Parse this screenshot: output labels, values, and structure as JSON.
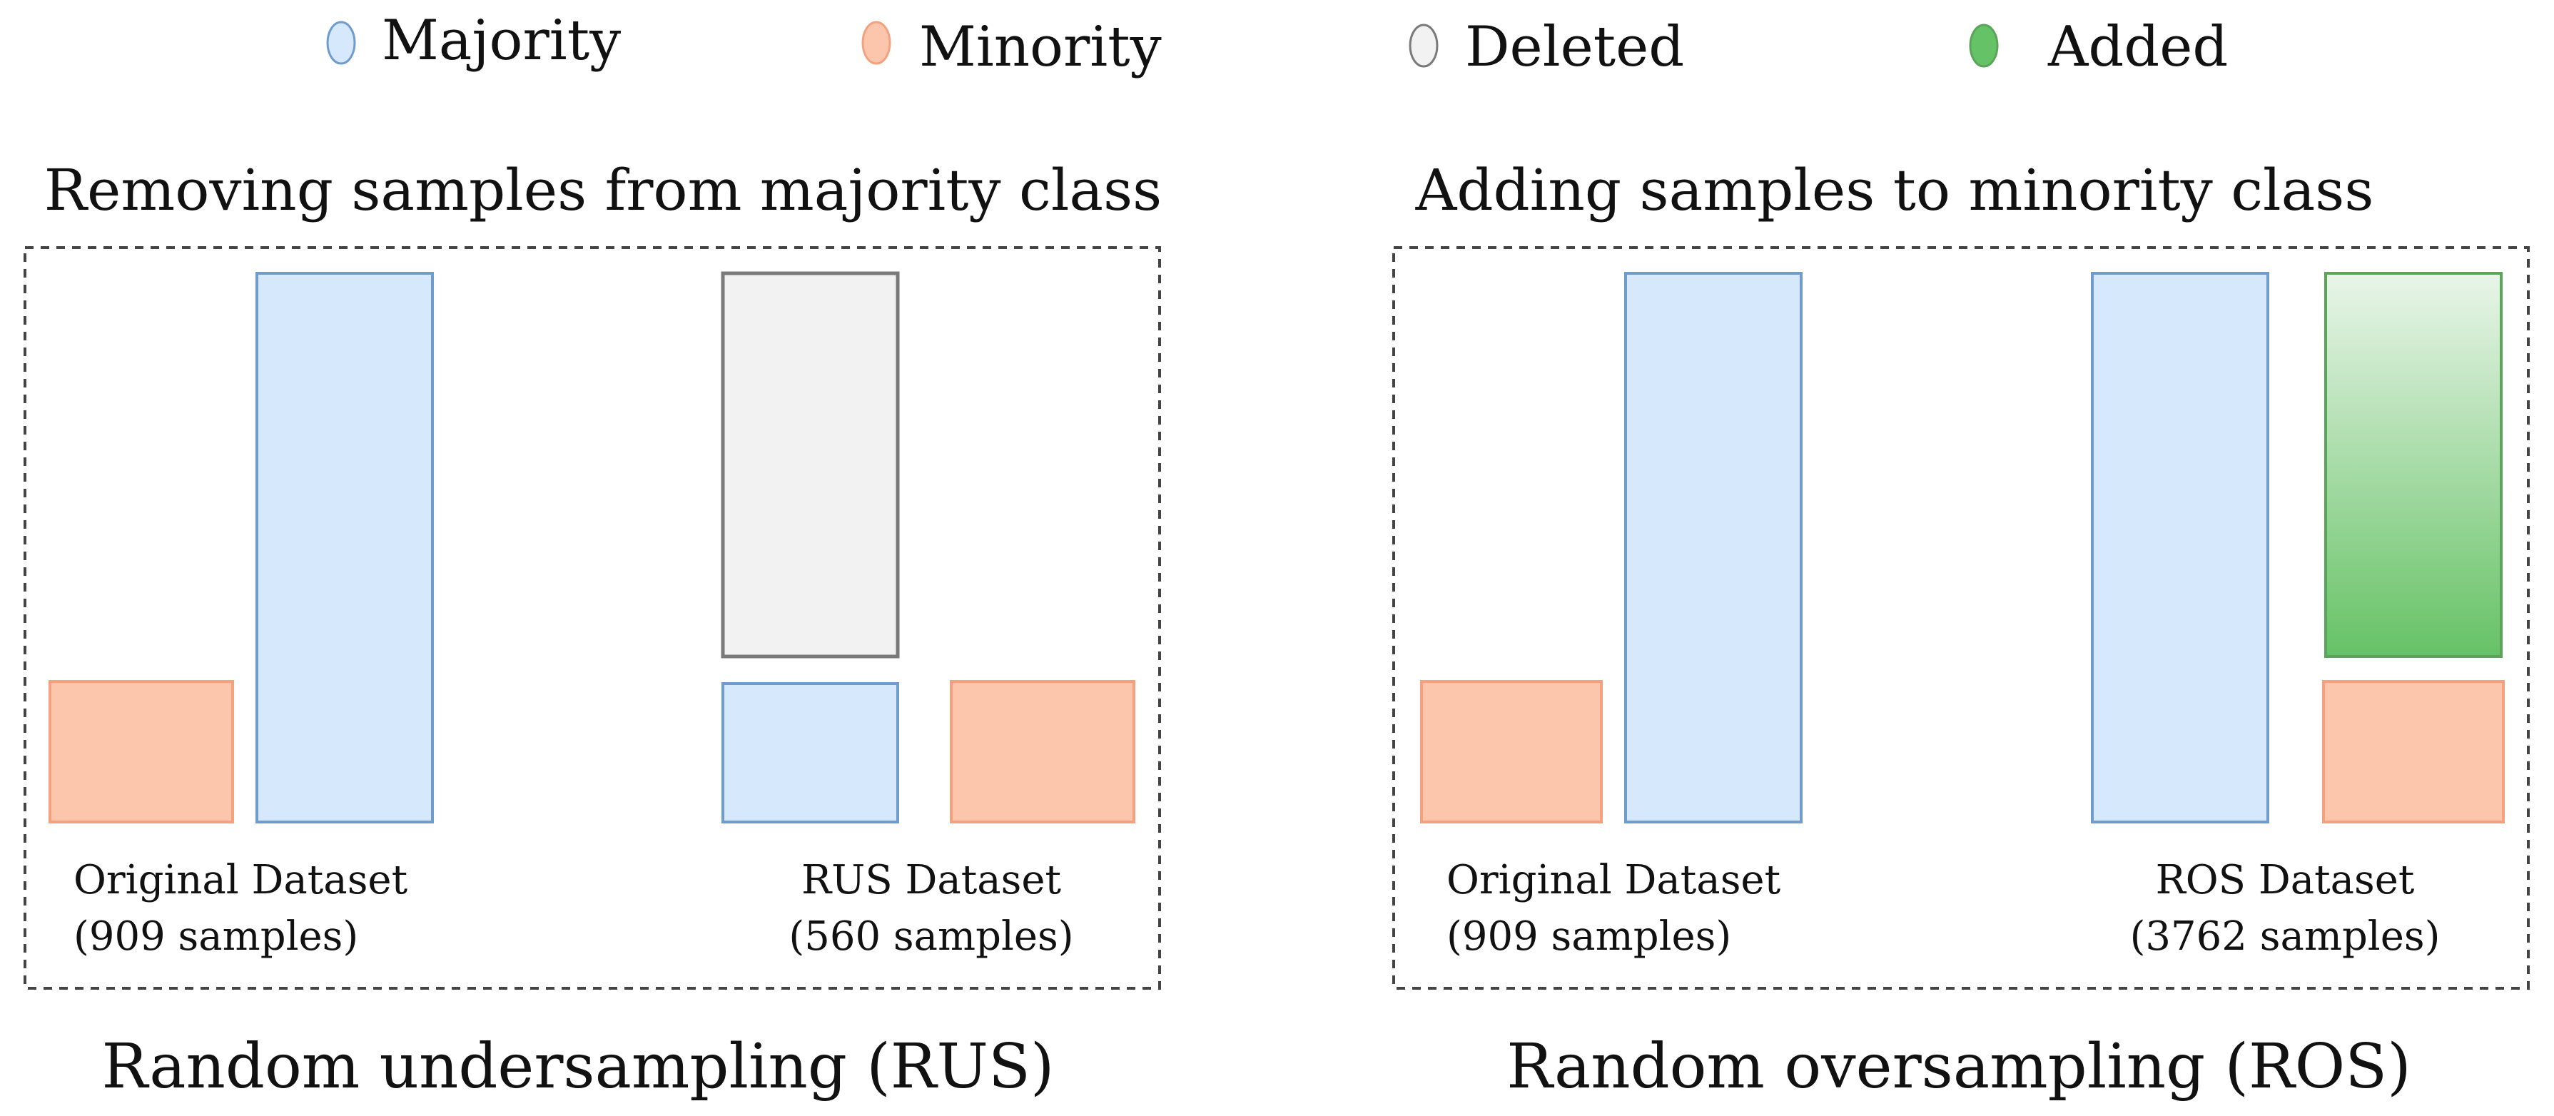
{
  "colors": {
    "majority_fill": "#d6e8fb",
    "majority_stroke": "#6f9ccd",
    "minority_fill": "#fcc6ad",
    "minority_stroke": "#f3a17f",
    "deleted_fill": "#f2f2f2",
    "deleted_stroke": "#7a7a7a",
    "added_fill_top": "#e9f5e9",
    "added_fill_bottom": "#66c266",
    "added_stroke": "#5aa55a"
  },
  "legend": [
    {
      "id": "majority",
      "label": "Majority"
    },
    {
      "id": "minority",
      "label": "Minority"
    },
    {
      "id": "deleted",
      "label": "Deleted"
    },
    {
      "id": "added",
      "label": "Added"
    }
  ],
  "rus": {
    "title": "Removing samples from majority class",
    "caption": "Random undersampling (RUS)",
    "original": {
      "name": "Original Dataset",
      "count": "(909 samples)"
    },
    "result": {
      "name": "RUS Dataset",
      "count": "(560 samples)"
    }
  },
  "ros": {
    "title": "Adding samples to minority class",
    "caption": "Random oversampling (ROS)",
    "original": {
      "name": "Original Dataset",
      "count": "(909 samples)"
    },
    "result": {
      "name": "ROS Dataset",
      "count": "(3762 samples)"
    }
  }
}
